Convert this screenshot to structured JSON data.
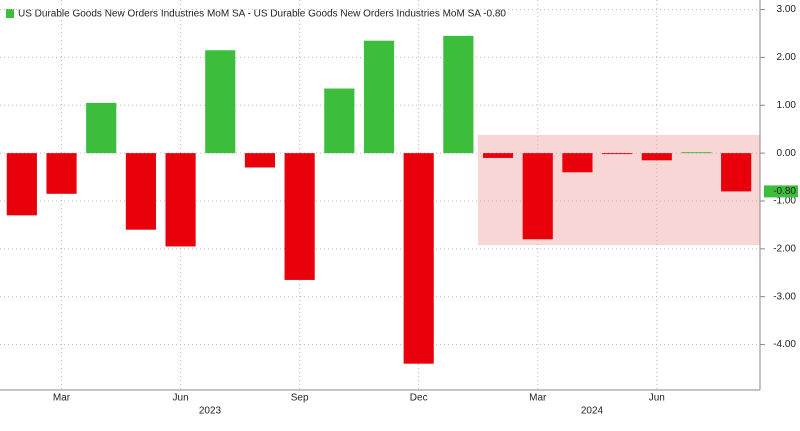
{
  "chart_data": {
    "type": "bar",
    "series": [
      {
        "name": "US Durable Goods New Orders Industries MoM SA - US Durable Goods New Orders Industries MoM SA -0.80",
        "color": "#3cbe3c",
        "negative_color": "#e8000b",
        "values": [
          -1.3,
          -0.85,
          1.05,
          -1.6,
          -1.95,
          2.15,
          -0.3,
          -2.65,
          1.35,
          2.35,
          -4.4,
          2.45,
          -0.1,
          -1.8,
          -0.4,
          -0.02,
          -0.15,
          0.02,
          -0.8
        ]
      }
    ],
    "categories": [
      null,
      "Mar",
      null,
      null,
      "Jun",
      null,
      null,
      "Sep",
      null,
      null,
      "Dec",
      null,
      null,
      "Mar",
      null,
      null,
      "Jun",
      null,
      null
    ],
    "year_labels": [
      "2023",
      "2024"
    ],
    "last_value": {
      "value": -0.8,
      "label": "-0.80"
    },
    "ylim": [
      -4.95,
      3.2
    ],
    "yticks": [
      {
        "value": 3,
        "label": "3.00"
      },
      {
        "value": 2,
        "label": "2.00"
      },
      {
        "value": 1,
        "label": "1.00"
      },
      {
        "value": 0,
        "label": "0.00"
      },
      {
        "value": -1,
        "label": "-1.00"
      },
      {
        "value": -2,
        "label": "-2.00"
      },
      {
        "value": -3,
        "label": "-3.00"
      },
      {
        "value": -4,
        "label": "-4.00"
      }
    ],
    "grid": true
  }
}
